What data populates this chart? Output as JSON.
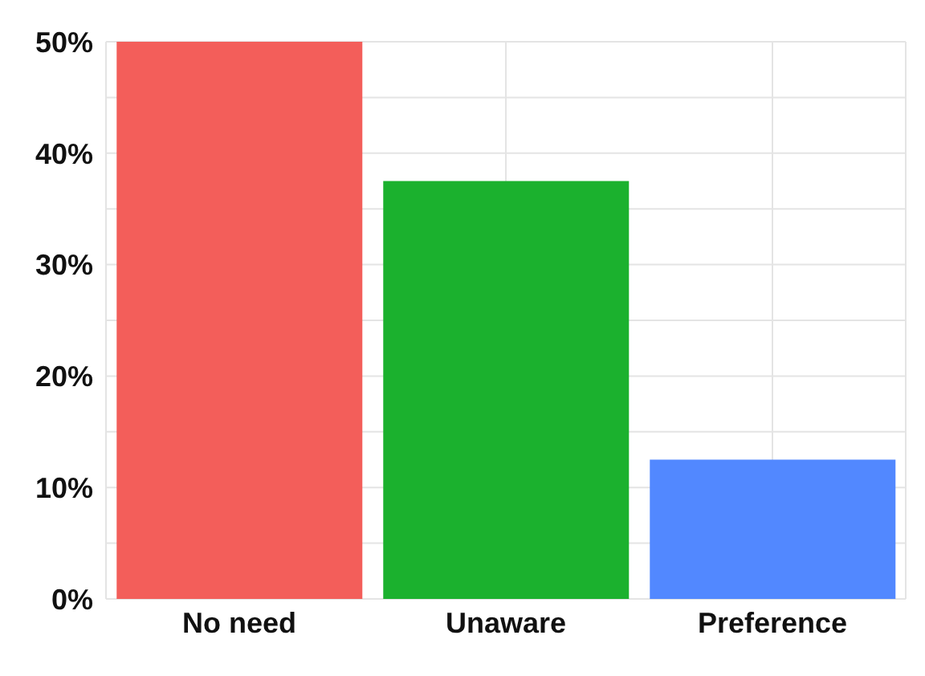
{
  "chart_data": {
    "type": "bar",
    "categories": [
      "No need",
      "Unaware",
      "Preference"
    ],
    "values": [
      50,
      37.5,
      12.5
    ],
    "colors": [
      "#f35e5a",
      "#1bb12e",
      "#5288ff"
    ],
    "ylim": [
      0,
      50
    ],
    "yticks": [
      {
        "value": 0,
        "label": "0%"
      },
      {
        "value": 5,
        "label": null
      },
      {
        "value": 10,
        "label": "10%"
      },
      {
        "value": 15,
        "label": null
      },
      {
        "value": 20,
        "label": "20%"
      },
      {
        "value": 25,
        "label": null
      },
      {
        "value": 30,
        "label": "30%"
      },
      {
        "value": 35,
        "label": null
      },
      {
        "value": 40,
        "label": "40%"
      },
      {
        "value": 45,
        "label": null
      },
      {
        "value": 50,
        "label": "50%"
      }
    ],
    "grid": true,
    "legend": false
  }
}
